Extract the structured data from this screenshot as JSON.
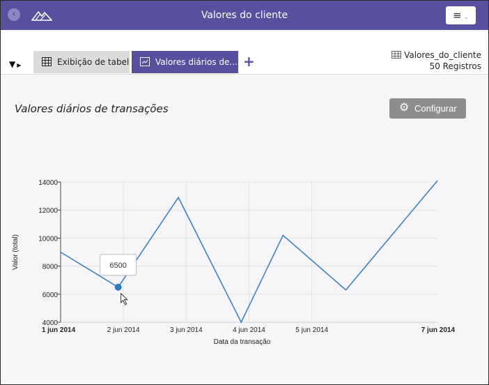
{
  "header": {
    "title": "Valores do cliente",
    "menu_icon": "≡"
  },
  "tabs": [
    {
      "label": "Exibição de tabela",
      "active": false
    },
    {
      "label": "Valores diários de...",
      "active": true
    }
  ],
  "datasource": {
    "name": "Valores_do_cliente",
    "records": "50 Registros"
  },
  "chart_title": "Valores diários de transações",
  "config_label": "Configurar",
  "colors": {
    "header": "#56509e",
    "line": "#3a82c2",
    "point": "#2f7dc0"
  },
  "chart_data": {
    "type": "line",
    "xlabel": "Data da transação",
    "ylabel": "Valor (total)",
    "ylim": [
      4000,
      14000
    ],
    "yticks": [
      "4000",
      "6000",
      "8000",
      "10000",
      "12000",
      "14000"
    ],
    "xlim": [
      "2014-06-01",
      "2014-06-07"
    ],
    "xticks": [
      "1 jun 2014",
      "2 jun 2014",
      "3 jun 2014",
      "4 jun 2014",
      "5 jun 2014",
      "7 jun 2014"
    ],
    "xtick_dates": [
      "2014-06-01",
      "2014-06-02",
      "2014-06-03",
      "2014-06-04",
      "2014-06-05",
      "2014-06-07"
    ],
    "grid": true,
    "series": [
      {
        "x": [
          "2014-06-01",
          "2014-06-01 22:00",
          "2014-06-02 21:00",
          "2014-06-03 21:00",
          "2014-06-04 13:00",
          "2014-06-05 13:00",
          "2014-06-07"
        ],
        "values": [
          9000,
          6500,
          12900,
          4000,
          10200,
          6300,
          14100
        ]
      }
    ],
    "tooltip": {
      "value": "6500",
      "point_index": 1
    }
  }
}
